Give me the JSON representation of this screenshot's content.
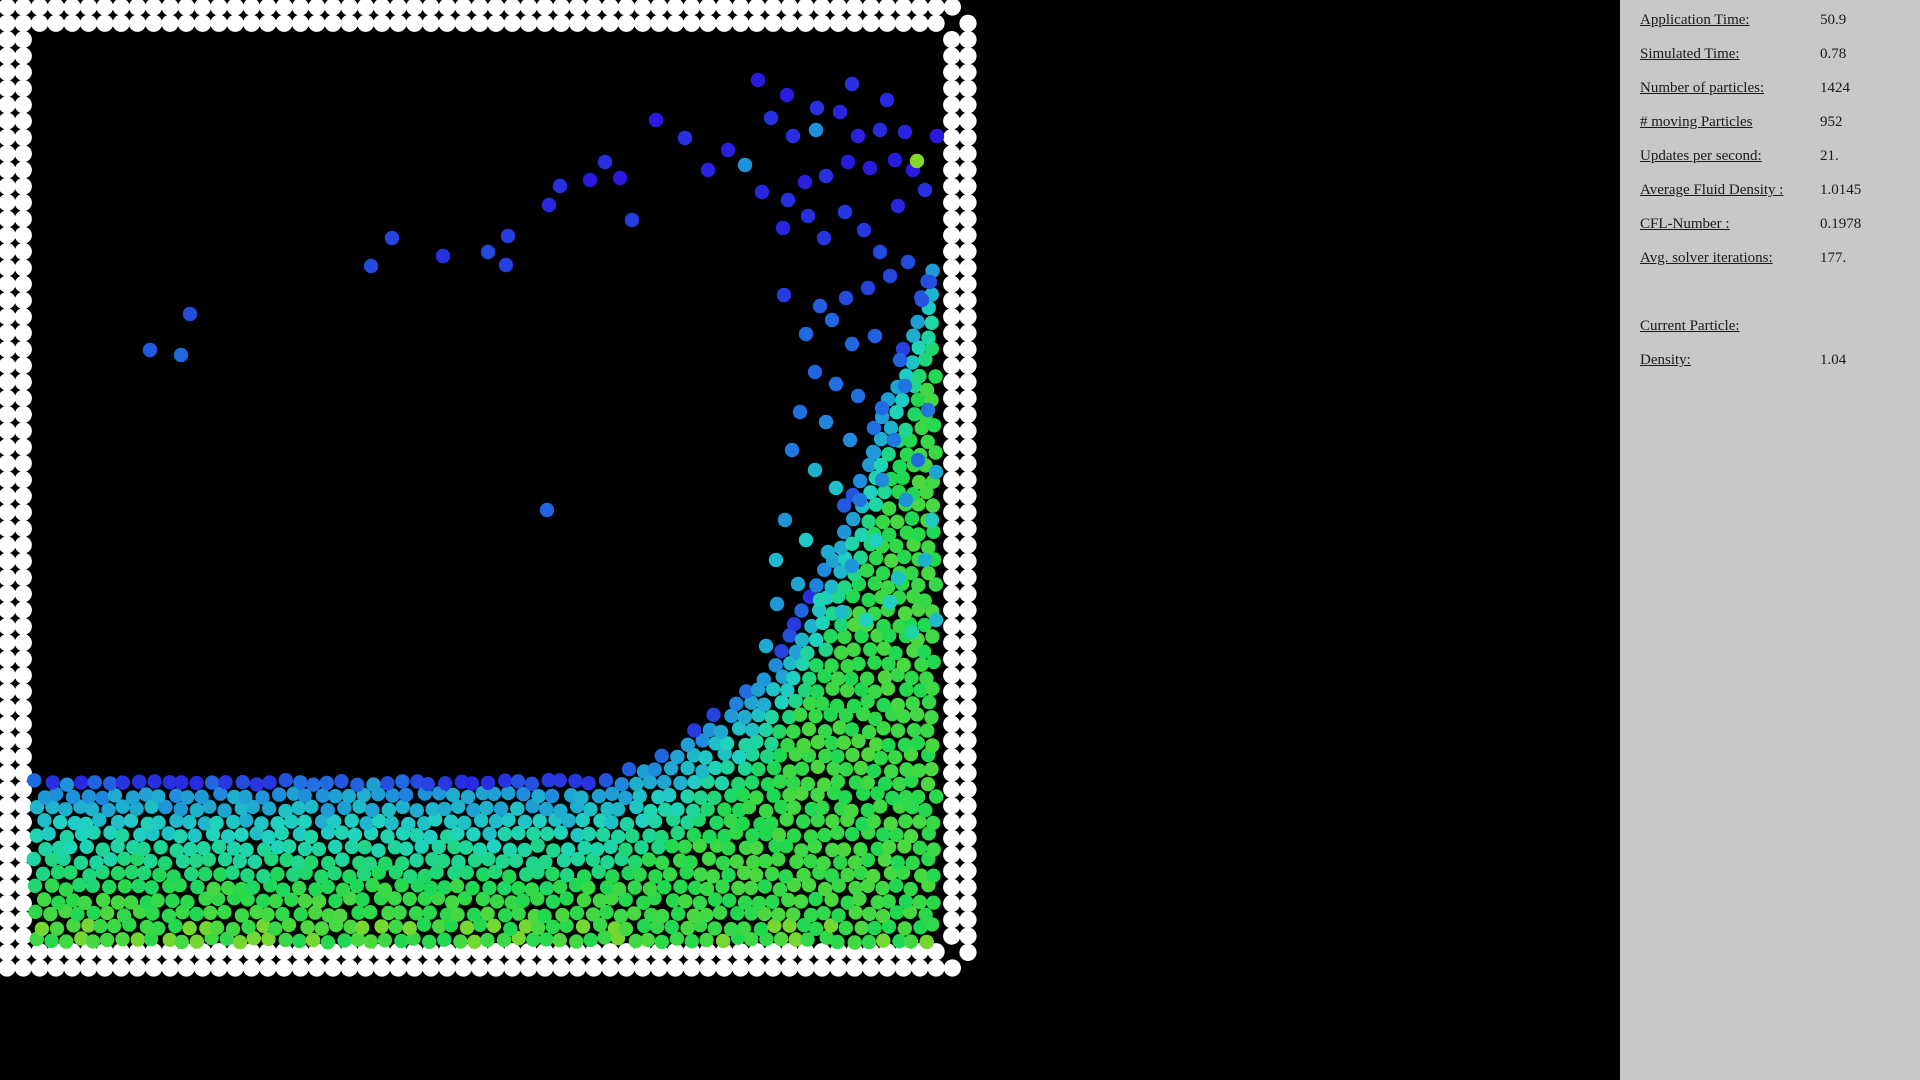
{
  "simulation": {
    "wall_color": "#ffffff",
    "colormap": [
      "#2a1adf",
      "#1f7fe0",
      "#1fd3c0",
      "#20d850",
      "#8ad82a"
    ],
    "description_colors": {
      "low_density": "#2a1adf",
      "mid_density": "#1fd3c0",
      "high_density": "#8ad82a"
    }
  },
  "panel": {
    "background": "#c8c8c8",
    "stats": [
      {
        "label": "Application Time:",
        "value": "50.9"
      },
      {
        "label": "Simulated Time:",
        "value": "0.78"
      },
      {
        "label": "Number of particles:",
        "value": "1424"
      },
      {
        "label": "# moving Particles",
        "value": "952"
      },
      {
        "label": "Updates per second:",
        "value": "21."
      },
      {
        "label": "Average Fluid Density :",
        "value": "1.0145"
      },
      {
        "label": "CFL-Number :",
        "value": "0.1978"
      },
      {
        "label": "Avg. solver iterations:",
        "value": "177."
      }
    ],
    "current_particle": {
      "heading": "Current Particle:",
      "density_label": "Density:",
      "density_value": "1.04"
    }
  }
}
